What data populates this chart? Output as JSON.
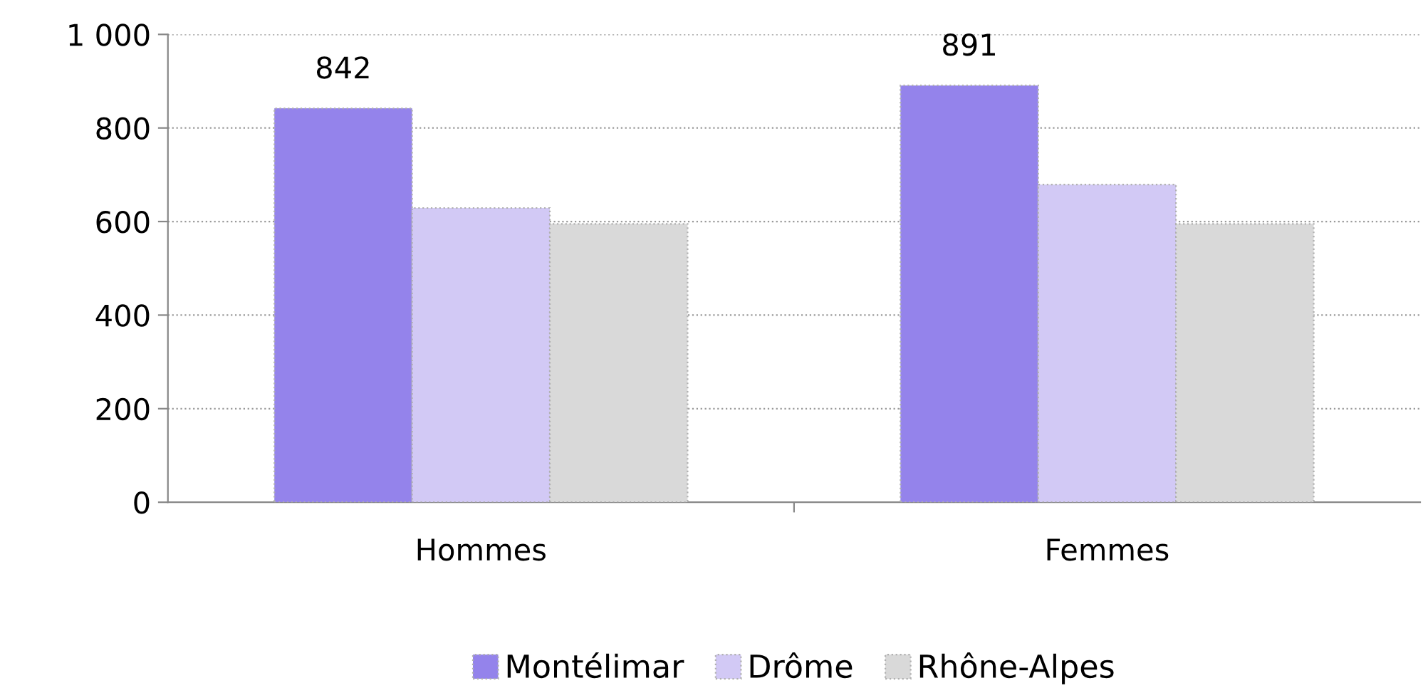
{
  "chart_data": {
    "type": "bar",
    "categories": [
      "Hommes",
      "Femmes"
    ],
    "series": [
      {
        "name": "Montélimar",
        "color": "#9483eb",
        "values": [
          842,
          891
        ],
        "value_labels": [
          "842",
          "891"
        ]
      },
      {
        "name": "Drôme",
        "color": "#d2c9f5",
        "values": [
          629,
          679
        ]
      },
      {
        "name": "Rhône-Alpes",
        "color": "#d9d9d9",
        "values": [
          595,
          595
        ]
      }
    ],
    "ylim": [
      0,
      1000
    ],
    "yticks": [
      0,
      200,
      400,
      600,
      800,
      {
        "value": 1000,
        "label": "1 000"
      }
    ],
    "grid": "y",
    "legend": "bottom"
  }
}
